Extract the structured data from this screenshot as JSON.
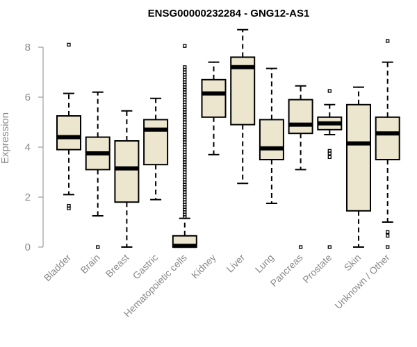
{
  "chart_data": {
    "type": "boxplot",
    "title": "ENSG00000232284 - GNG12-AS1",
    "ylabel": "Expression",
    "xlabel": "",
    "ylim": [
      0,
      8.8
    ],
    "yticks": [
      0,
      2,
      4,
      6,
      8
    ],
    "colors": {
      "box_fill": "#ede6ce",
      "stroke": "#000000",
      "axis": "#8a8a8a"
    },
    "categories": [
      "Bladder",
      "Brain",
      "Breast",
      "Gastric",
      "Hematopoietic cells",
      "Kidney",
      "Liver",
      "Lung",
      "Pancreas",
      "Prostate",
      "Skin",
      "Unknown / Other"
    ],
    "boxes": [
      {
        "q1": 3.9,
        "median": 4.4,
        "q3": 5.25,
        "whisker_low": 2.1,
        "whisker_high": 6.15,
        "outliers": [
          8.1,
          1.65,
          1.55
        ]
      },
      {
        "q1": 3.1,
        "median": 3.75,
        "q3": 4.4,
        "whisker_low": 1.25,
        "whisker_high": 6.2,
        "outliers": [
          0.0
        ]
      },
      {
        "q1": 1.8,
        "median": 3.15,
        "q3": 4.25,
        "whisker_low": 0.0,
        "whisker_high": 5.45,
        "outliers": []
      },
      {
        "q1": 3.3,
        "median": 4.7,
        "q3": 5.1,
        "whisker_low": 1.9,
        "whisker_high": 5.95,
        "outliers": []
      },
      {
        "q1": 0.0,
        "median": 0.05,
        "q3": 0.45,
        "whisker_low": 0.0,
        "whisker_high": 1.15,
        "outliers": [
          8.05,
          7.2,
          7.1,
          7.0,
          6.9,
          6.8,
          6.7,
          6.6,
          6.5,
          6.4,
          6.3,
          6.2,
          6.1,
          6.0,
          5.9,
          5.8,
          5.7,
          5.6,
          5.5,
          5.4,
          5.3,
          5.2,
          5.1,
          5.0,
          4.9,
          4.8,
          4.7,
          4.6,
          4.5,
          4.4,
          4.3,
          4.2,
          4.1,
          4.0,
          3.9,
          3.8,
          3.7,
          3.6,
          3.5,
          3.4,
          3.3,
          3.2,
          3.1,
          3.0,
          2.9,
          2.8,
          2.7,
          2.6,
          2.5,
          2.4,
          2.3,
          2.2,
          2.1,
          2.0,
          1.9,
          1.8,
          1.7,
          1.6,
          1.5,
          1.4,
          1.3,
          1.2
        ]
      },
      {
        "q1": 5.2,
        "median": 6.15,
        "q3": 6.7,
        "whisker_low": 3.7,
        "whisker_high": 7.4,
        "outliers": []
      },
      {
        "q1": 4.9,
        "median": 7.2,
        "q3": 7.6,
        "whisker_low": 2.55,
        "whisker_high": 8.7,
        "outliers": []
      },
      {
        "q1": 3.5,
        "median": 3.95,
        "q3": 5.1,
        "whisker_low": 1.75,
        "whisker_high": 7.15,
        "outliers": []
      },
      {
        "q1": 4.55,
        "median": 4.9,
        "q3": 5.9,
        "whisker_low": 3.1,
        "whisker_high": 6.45,
        "outliers": [
          0.0
        ]
      },
      {
        "q1": 4.7,
        "median": 4.95,
        "q3": 5.2,
        "whisker_low": 4.5,
        "whisker_high": 5.7,
        "outliers": [
          6.25,
          3.85,
          3.75,
          3.6,
          0.0
        ]
      },
      {
        "q1": 1.45,
        "median": 4.15,
        "q3": 5.7,
        "whisker_low": 0.0,
        "whisker_high": 6.4,
        "outliers": []
      },
      {
        "q1": 3.5,
        "median": 4.55,
        "q3": 5.2,
        "whisker_low": 1.0,
        "whisker_high": 7.4,
        "outliers": [
          8.25,
          0.6,
          0.45,
          0.0
        ]
      }
    ]
  }
}
